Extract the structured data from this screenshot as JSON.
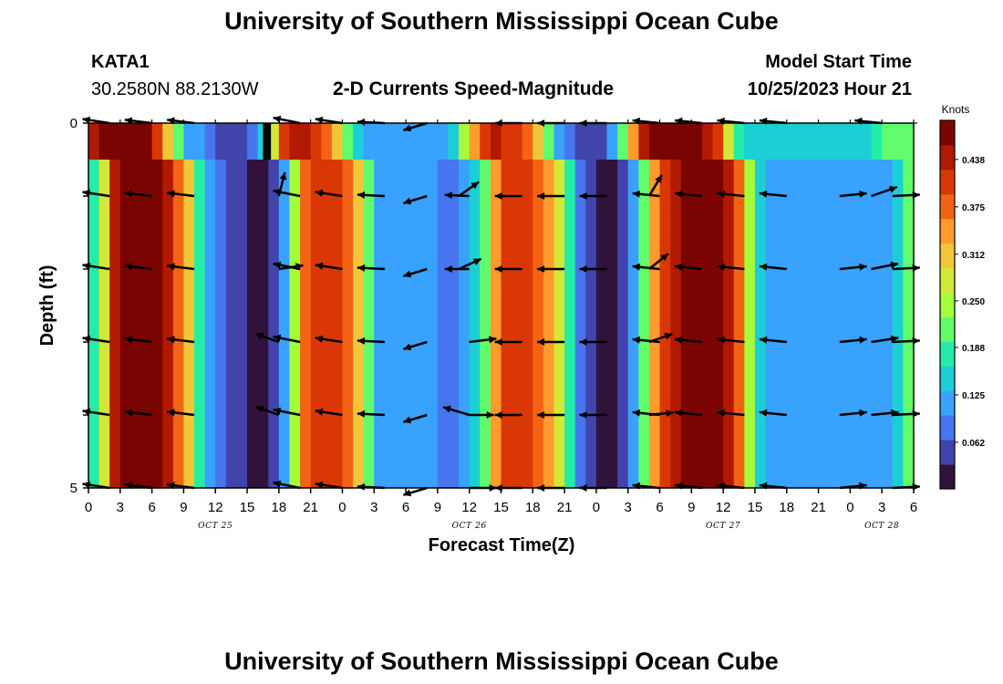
{
  "page": {
    "title": "University of Southern Mississippi Ocean Cube",
    "footer_title": "University of Southern Mississippi Ocean Cube",
    "station_id": "KATA1",
    "coordinates": "30.2580N  88.2130W",
    "model_start_label": "Model Start Time",
    "model_start_value": "10/25/2023 Hour 21"
  },
  "chart_data": {
    "type": "heatmap",
    "title": "2-D Currents Speed-Magnitude",
    "xlabel": "Forecast Time(Z)",
    "ylabel": "Depth (ft)",
    "x_range_hours": [
      0,
      78
    ],
    "ylim": [
      0,
      5
    ],
    "y_ticks": [
      "0",
      "5"
    ],
    "x_tick_labels": [
      "0",
      "3",
      "6",
      "9",
      "12",
      "15",
      "18",
      "21",
      "0",
      "3",
      "6",
      "9",
      "12",
      "15",
      "18",
      "21",
      "0",
      "3",
      "6",
      "9",
      "12",
      "15",
      "18",
      "21",
      "0",
      "3",
      "6"
    ],
    "day_labels": [
      {
        "label": "OCT 25",
        "hour": 12
      },
      {
        "label": "OCT 26",
        "hour": 36
      },
      {
        "label": "OCT 27",
        "hour": 60
      },
      {
        "label": "OCT 28",
        "hour": 75
      }
    ],
    "colorbar": {
      "title": "Knots",
      "ticks": [
        "0.062",
        "0.125",
        "0.188",
        "0.250",
        "0.312",
        "0.375",
        "0.438"
      ],
      "vmin": 0,
      "vmax": 0.49
    },
    "colors": [
      "#30123b",
      "#4145ab",
      "#4675ed",
      "#39a2fc",
      "#1bcfd4",
      "#24eca6",
      "#61fc6c",
      "#a4fc3b",
      "#d1e834",
      "#f3c63a",
      "#fe9b2d",
      "#f36315",
      "#d93806",
      "#b11901",
      "#7a0402"
    ],
    "speed_knots": [
      0.18,
      0.28,
      0.43,
      0.46,
      0.47,
      0.47,
      0.46,
      0.44,
      0.38,
      0.3,
      0.18,
      0.1,
      0.08,
      0.06,
      0.04,
      0.02,
      0.02,
      0.05,
      0.12,
      0.25,
      0.38,
      0.41,
      0.42,
      0.4,
      0.36,
      0.3,
      0.2,
      0.13,
      0.11,
      0.1,
      0.1,
      0.1,
      0.1,
      0.09,
      0.09,
      0.1,
      0.14,
      0.22,
      0.33,
      0.4,
      0.41,
      0.4,
      0.38,
      0.35,
      0.28,
      0.18,
      0.09,
      0.05,
      0.03,
      0.02,
      0.04,
      0.1,
      0.2,
      0.33,
      0.42,
      0.45,
      0.47,
      0.48,
      0.48,
      0.46,
      0.43,
      0.38,
      0.25,
      0.16,
      0.13,
      0.12,
      0.12,
      0.12,
      0.12,
      0.12,
      0.12,
      0.12,
      0.12,
      0.12,
      0.12,
      0.13,
      0.16,
      0.2
    ],
    "near_surface_depth_ft": 0.5,
    "near_surface_offset_hours": 1.5,
    "near_surface_offset_knots": 0.02,
    "masked_cells": [
      {
        "hour": 17,
        "depth_ft_from": 0,
        "depth_ft_to": 0.5
      }
    ],
    "vector_depths_ft": [
      0,
      1,
      2,
      3,
      4,
      5
    ],
    "vectors": [
      {
        "hour": 2,
        "u": -1.0,
        "v": 0.15
      },
      {
        "hour": 6,
        "u": -1.0,
        "v": 0.12
      },
      {
        "hour": 10,
        "u": -1.0,
        "v": 0.12
      },
      {
        "hour": 18,
        "u": 0.25,
        "v": 1.0,
        "depth_ft": 1,
        "len": 0.9
      },
      {
        "hour": 18,
        "u": 1.0,
        "v": 0.15,
        "depth_ft": 2,
        "len": 0.9
      },
      {
        "hour": 18,
        "u": -1.0,
        "v": 0.35,
        "depth_ft": 3,
        "len": 0.9
      },
      {
        "hour": 18,
        "u": -1.0,
        "v": 0.35,
        "depth_ft": 4,
        "len": 0.9
      },
      {
        "hour": 20,
        "u": -1.0,
        "v": 0.2
      },
      {
        "hour": 24,
        "u": -1.0,
        "v": 0.15
      },
      {
        "hour": 28,
        "u": -1.0,
        "v": 0.05
      },
      {
        "hour": 32,
        "u": -1.0,
        "v": -0.3,
        "len": 0.9
      },
      {
        "hour": 35,
        "u": 1.0,
        "v": 0.7,
        "depth_ft": 1,
        "len": 0.9
      },
      {
        "hour": 36,
        "u": -1.0,
        "v": 0.05,
        "depth_ft": 1,
        "len": 0.9
      },
      {
        "hour": 35,
        "u": 1.0,
        "v": 0.45,
        "depth_ft": 2,
        "len": 0.9
      },
      {
        "hour": 36,
        "u": -1.0,
        "v": 0.0,
        "depth_ft": 2,
        "len": 0.9
      },
      {
        "hour": 36,
        "u": 1.0,
        "v": 0.12,
        "depth_ft": 3
      },
      {
        "hour": 36,
        "u": 1.0,
        "v": 0.0,
        "depth_ft": 4,
        "len": 0.9
      },
      {
        "hour": 36,
        "u": -1.0,
        "v": 0.3,
        "depth_ft": 4
      },
      {
        "hour": 36,
        "u": 1.0,
        "v": 0.0,
        "depth_ft": 5
      },
      {
        "hour": 41,
        "u": -1.0,
        "v": 0.0
      },
      {
        "hour": 45,
        "u": -1.0,
        "v": 0.0
      },
      {
        "hour": 49,
        "u": -1.0,
        "v": 0.0
      },
      {
        "hour": 53,
        "u": 0.6,
        "v": 1.0,
        "depth_ft": 1,
        "len": 0.9
      },
      {
        "hour": 53,
        "u": 1.0,
        "v": 0.8,
        "depth_ft": 2,
        "len": 0.9
      },
      {
        "hour": 53,
        "u": 1.0,
        "v": 0.35,
        "depth_ft": 3,
        "len": 0.9
      },
      {
        "hour": 53,
        "u": 1.0,
        "v": 0.1,
        "depth_ft": 4,
        "len": 0.9
      },
      {
        "hour": 54,
        "u": -1.0,
        "v": 0.1,
        "depth_ft": 0
      },
      {
        "hour": 54,
        "u": -1.0,
        "v": 0.1,
        "depth_ft": 1
      },
      {
        "hour": 54,
        "u": -1.0,
        "v": 0.1,
        "depth_ft": 2
      },
      {
        "hour": 54,
        "u": -1.0,
        "v": 0.1,
        "depth_ft": 3
      },
      {
        "hour": 54,
        "u": -1.0,
        "v": 0.1,
        "depth_ft": 4
      },
      {
        "hour": 54,
        "u": -1.0,
        "v": 0.1,
        "depth_ft": 5
      },
      {
        "hour": 58,
        "u": -1.0,
        "v": 0.1
      },
      {
        "hour": 62,
        "u": -1.0,
        "v": 0.1
      },
      {
        "hour": 66,
        "u": -1.0,
        "v": 0.1
      },
      {
        "hour": 71,
        "u": 1.0,
        "v": 0.1,
        "depth_ft": 1
      },
      {
        "hour": 71,
        "u": 1.0,
        "v": 0.1,
        "depth_ft": 2
      },
      {
        "hour": 71,
        "u": 1.0,
        "v": 0.1,
        "depth_ft": 3
      },
      {
        "hour": 71,
        "u": 1.0,
        "v": 0.1,
        "depth_ft": 4
      },
      {
        "hour": 71,
        "u": 1.0,
        "v": 0.1,
        "depth_ft": 5
      },
      {
        "hour": 74,
        "u": 1.0,
        "v": 0.35,
        "depth_ft": 1
      },
      {
        "hour": 74,
        "u": 1.0,
        "v": 0.2,
        "depth_ft": 2
      },
      {
        "hour": 74,
        "u": 1.0,
        "v": 0.15,
        "depth_ft": 3
      },
      {
        "hour": 74,
        "u": 1.0,
        "v": 0.1,
        "depth_ft": 4
      },
      {
        "hour": 75,
        "u": -1.0,
        "v": 0.1,
        "depth_ft": 0
      },
      {
        "hour": 76,
        "u": 1.0,
        "v": 0.05,
        "depth_ft": 1
      },
      {
        "hour": 76,
        "u": 1.0,
        "v": 0.05,
        "depth_ft": 2
      },
      {
        "hour": 76,
        "u": 1.0,
        "v": 0.05,
        "depth_ft": 3
      },
      {
        "hour": 76,
        "u": 1.0,
        "v": 0.05,
        "depth_ft": 4
      },
      {
        "hour": 76,
        "u": 1.0,
        "v": 0.05,
        "depth_ft": 5
      }
    ]
  }
}
